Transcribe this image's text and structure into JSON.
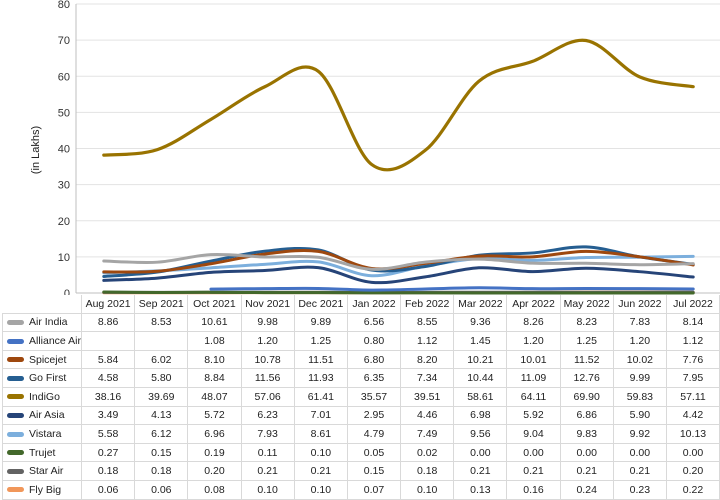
{
  "chart_data": {
    "type": "line",
    "title": "",
    "xlabel": "",
    "ylabel": "(in Lakhs)",
    "ylim": [
      0,
      80
    ],
    "yticks": [
      0,
      10,
      20,
      30,
      40,
      50,
      60,
      70,
      80
    ],
    "grid": true,
    "legend": "table-below",
    "categories": [
      "Aug 2021",
      "Sep 2021",
      "Oct 2021",
      "Nov 2021",
      "Dec 2021",
      "Jan 2022",
      "Feb 2022",
      "Mar 2022",
      "Apr 2022",
      "May 2022",
      "Jun 2022",
      "Jul 2022"
    ],
    "series": [
      {
        "name": "Air India",
        "color": "#a5a5a5",
        "values": [
          8.86,
          8.53,
          10.61,
          9.98,
          9.89,
          6.56,
          8.55,
          9.36,
          8.26,
          8.23,
          7.83,
          8.14
        ]
      },
      {
        "name": "Alliance Air",
        "color": "#4472c4",
        "values": [
          null,
          null,
          1.08,
          1.2,
          1.25,
          0.8,
          1.12,
          1.45,
          1.2,
          1.25,
          1.2,
          1.12
        ]
      },
      {
        "name": "Spicejet",
        "color": "#9e480e",
        "values": [
          5.84,
          6.02,
          8.1,
          10.78,
          11.51,
          6.8,
          8.2,
          10.21,
          10.01,
          11.52,
          10.02,
          7.76
        ]
      },
      {
        "name": "Go First",
        "color": "#255e91",
        "values": [
          4.58,
          5.8,
          8.84,
          11.56,
          11.93,
          6.35,
          7.34,
          10.44,
          11.09,
          12.76,
          9.99,
          7.95
        ]
      },
      {
        "name": "IndiGo",
        "color": "#997300",
        "values": [
          38.16,
          39.69,
          48.07,
          57.06,
          61.41,
          35.57,
          39.51,
          58.61,
          64.11,
          69.9,
          59.83,
          57.11
        ]
      },
      {
        "name": "Air Asia",
        "color": "#264478",
        "values": [
          3.49,
          4.13,
          5.72,
          6.23,
          7.01,
          2.95,
          4.46,
          6.98,
          5.92,
          6.86,
          5.9,
          4.42
        ]
      },
      {
        "name": "Vistara",
        "color": "#7cafdd",
        "values": [
          5.58,
          6.12,
          6.96,
          7.93,
          8.61,
          4.79,
          7.49,
          9.56,
          9.04,
          9.83,
          9.92,
          10.13
        ]
      },
      {
        "name": "Trujet",
        "color": "#43682b",
        "values": [
          0.27,
          0.15,
          0.19,
          0.11,
          0.1,
          0.05,
          0.02,
          0.0,
          0.0,
          0.0,
          0.0,
          0.0
        ]
      },
      {
        "name": "Star Air",
        "color": "#636363",
        "values": [
          0.18,
          0.18,
          0.2,
          0.21,
          0.21,
          0.15,
          0.18,
          0.21,
          0.21,
          0.21,
          0.21,
          0.2
        ]
      },
      {
        "name": "Fly Big",
        "color": "#f1975a",
        "values": [
          0.06,
          0.06,
          0.08,
          0.1,
          0.1,
          0.07,
          0.1,
          0.13,
          0.16,
          0.24,
          0.23,
          0.22
        ]
      }
    ]
  }
}
